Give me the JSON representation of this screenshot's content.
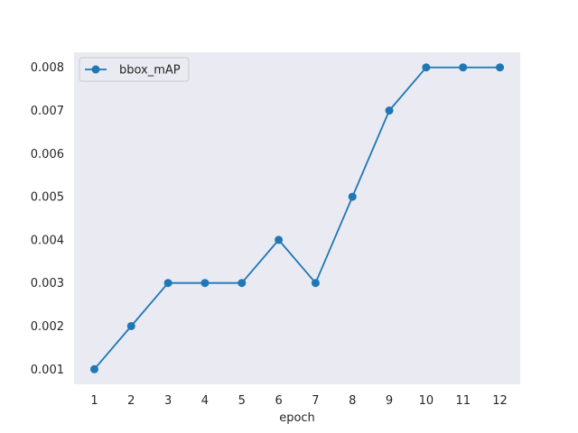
{
  "chart_data": {
    "type": "line",
    "title": "",
    "xlabel": "epoch",
    "ylabel": "",
    "x": [
      1,
      2,
      3,
      4,
      5,
      6,
      7,
      8,
      9,
      10,
      11,
      12
    ],
    "series": [
      {
        "name": "bbox_mAP",
        "values": [
          0.001,
          0.002,
          0.003,
          0.003,
          0.003,
          0.004,
          0.003,
          0.005,
          0.007,
          0.008,
          0.008,
          0.008
        ],
        "color": "#1f77b4",
        "marker": "circle"
      }
    ],
    "xticks": [
      "1",
      "2",
      "3",
      "4",
      "5",
      "6",
      "7",
      "8",
      "9",
      "10",
      "11",
      "12"
    ],
    "yticks": [
      "0.001",
      "0.002",
      "0.003",
      "0.004",
      "0.005",
      "0.006",
      "0.007",
      "0.008"
    ],
    "xlim": [
      0.45,
      12.55
    ],
    "ylim": [
      0.00065,
      0.00835
    ],
    "grid": false,
    "legend": "top-left",
    "background": "#eaeaf2"
  }
}
